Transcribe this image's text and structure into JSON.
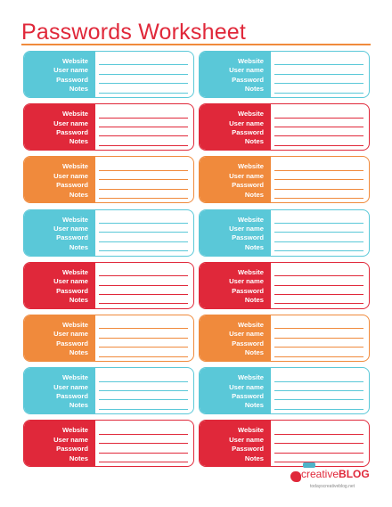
{
  "title": "Passwords Worksheet",
  "colors": {
    "title": "#e0283a",
    "rule": "#f08a3c",
    "teal": "#5ac8d8",
    "red": "#e0283a",
    "orange": "#f08a3c"
  },
  "field_labels": [
    "Website",
    "User name",
    "Password",
    "Notes"
  ],
  "rows": [
    {
      "color": "teal"
    },
    {
      "color": "red"
    },
    {
      "color": "orange"
    },
    {
      "color": "teal"
    },
    {
      "color": "red"
    },
    {
      "color": "orange"
    },
    {
      "color": "teal"
    },
    {
      "color": "red"
    }
  ],
  "footer": {
    "logo_prefix": "creative",
    "logo_suffix": "BLOG",
    "url": "todayscreativeblog.net"
  }
}
